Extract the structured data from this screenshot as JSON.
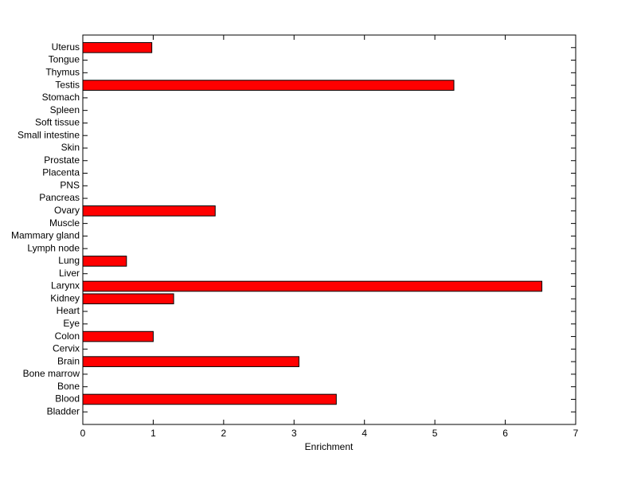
{
  "chart_data": {
    "type": "barh",
    "xlabel": "Enrichment",
    "categories": [
      "Bladder",
      "Blood",
      "Bone",
      "Bone marrow",
      "Brain",
      "Cervix",
      "Colon",
      "Eye",
      "Heart",
      "Kidney",
      "Larynx",
      "Liver",
      "Lung",
      "Lymph node",
      "Mammary gland",
      "Muscle",
      "Ovary",
      "Pancreas",
      "PNS",
      "Placenta",
      "Prostate",
      "Skin",
      "Small intestine",
      "Soft tissue",
      "Spleen",
      "Stomach",
      "Testis",
      "Thymus",
      "Tongue",
      "Uterus"
    ],
    "values": [
      0,
      3.6,
      0,
      0,
      3.07,
      0,
      1.0,
      0,
      0,
      1.29,
      6.52,
      0,
      0.62,
      0,
      0,
      0,
      1.88,
      0,
      0,
      0,
      0,
      0,
      0,
      0,
      0,
      0,
      5.27,
      0,
      0,
      0.98
    ],
    "color": "#ff0000",
    "xlim": [
      0,
      7
    ],
    "xticks": [
      0,
      1,
      2,
      3,
      4,
      5,
      6,
      7
    ]
  }
}
